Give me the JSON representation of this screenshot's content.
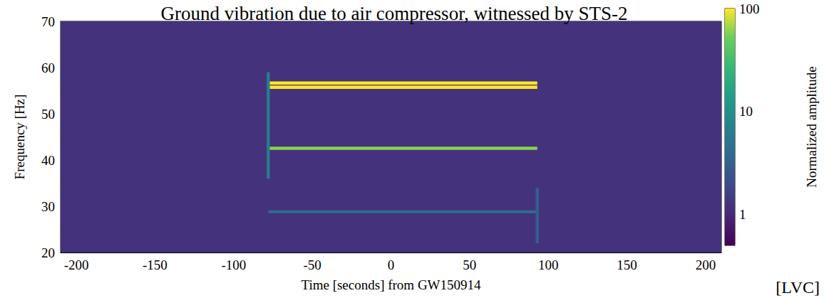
{
  "chart_data": {
    "type": "heatmap",
    "title": "Ground vibration due to air compressor, witnessed by STS-2",
    "x_label": "Time [seconds] from GW150914",
    "y_label": "Frequency [Hz]",
    "xlim": [
      -210,
      210
    ],
    "ylim": [
      20,
      70
    ],
    "xticks": [
      -200,
      -150,
      -100,
      -50,
      0,
      50,
      100,
      150,
      200
    ],
    "yticks": [
      20,
      30,
      40,
      50,
      60,
      70
    ],
    "grid": true,
    "cells": [
      {
        "x": [
          -210,
          210
        ],
        "y": [
          20,
          70
        ],
        "value": 1.2
      },
      {
        "x": [
          -78,
          93
        ],
        "y": [
          56.3,
          57.0
        ],
        "value": 100
      },
      {
        "x": [
          -78,
          93
        ],
        "y": [
          55.4,
          56.1
        ],
        "value": 100
      },
      {
        "x": [
          -78,
          93
        ],
        "y": [
          42.2,
          42.9
        ],
        "value": 60
      },
      {
        "x": [
          -78,
          93
        ],
        "y": [
          28.5,
          29.1
        ],
        "value": 4
      },
      {
        "x": [
          -79,
          -77
        ],
        "y": [
          36,
          59
        ],
        "value": 6
      },
      {
        "x": [
          92,
          94
        ],
        "y": [
          22,
          34
        ],
        "value": 3
      }
    ],
    "colorbar_label": "Normalized amplitude",
    "colorbar_lim": [
      0.5,
      100
    ],
    "colorbar_ticks": [
      1,
      10,
      100
    ],
    "log": "colorbar",
    "annotation": "[LVC]"
  }
}
